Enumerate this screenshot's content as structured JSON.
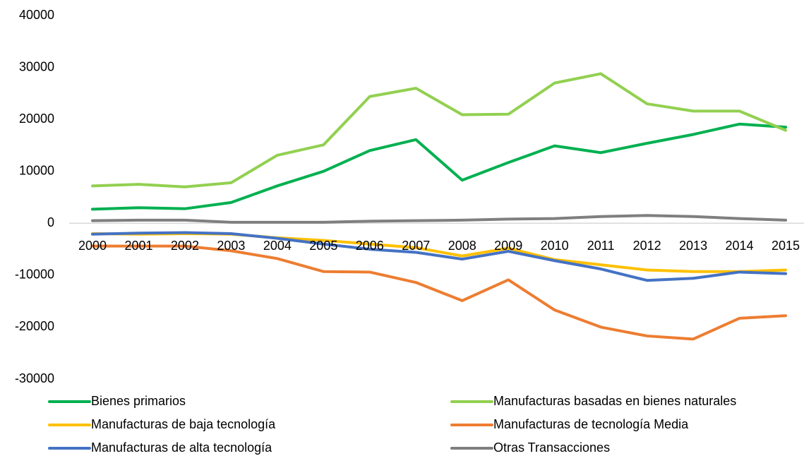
{
  "chart_data": {
    "type": "line",
    "x": [
      "2000",
      "2001",
      "2002",
      "2003",
      "2004",
      "2005",
      "2006",
      "2007",
      "2008",
      "2009",
      "2010",
      "2011",
      "2012",
      "2013",
      "2014",
      "2015"
    ],
    "series": [
      {
        "name": "Bienes primarios",
        "color": "#00b050",
        "values": [
          2700,
          3000,
          2800,
          4000,
          7200,
          10000,
          14000,
          16100,
          8300,
          11700,
          14900,
          13600,
          15400,
          17100,
          19100,
          18500
        ]
      },
      {
        "name": "Manufacturas basadas en bienes naturales",
        "color": "#92d050",
        "values": [
          7200,
          7500,
          7000,
          7800,
          13100,
          15100,
          24400,
          26000,
          20900,
          21000,
          27000,
          28800,
          23000,
          21600,
          21600,
          17900
        ]
      },
      {
        "name": "Manufacturas de baja tecnología",
        "color": "#ffc000",
        "values": [
          -2000,
          -2100,
          -2000,
          -2100,
          -2800,
          -3300,
          -4000,
          -4700,
          -6300,
          -4800,
          -7000,
          -8000,
          -9000,
          -9300,
          -9300,
          -9000
        ]
      },
      {
        "name": "Manufacturas de tecnología Media",
        "color": "#ed7d31",
        "values": [
          -4400,
          -4400,
          -4400,
          -5300,
          -6800,
          -9300,
          -9400,
          -11400,
          -14900,
          -10900,
          -16700,
          -20000,
          -21700,
          -22300,
          -18300,
          -17800
        ]
      },
      {
        "name": "Manufacturas de alta tecnología",
        "color": "#4472c4",
        "values": [
          -2100,
          -1900,
          -1800,
          -2000,
          -2900,
          -4000,
          -5000,
          -5600,
          -6900,
          -5400,
          -7200,
          -8800,
          -11000,
          -10600,
          -9400,
          -9700
        ]
      },
      {
        "name": "Otras Transacciones",
        "color": "#7f7f7f",
        "values": [
          500,
          600,
          600,
          200,
          200,
          200,
          400,
          500,
          600,
          800,
          900,
          1300,
          1500,
          1300,
          900,
          600
        ]
      }
    ],
    "ylim": [
      -30000,
      40000
    ],
    "yticks": [
      -30000,
      -20000,
      -10000,
      0,
      10000,
      20000,
      30000,
      40000
    ],
    "grid": false,
    "legend": "bottom"
  }
}
